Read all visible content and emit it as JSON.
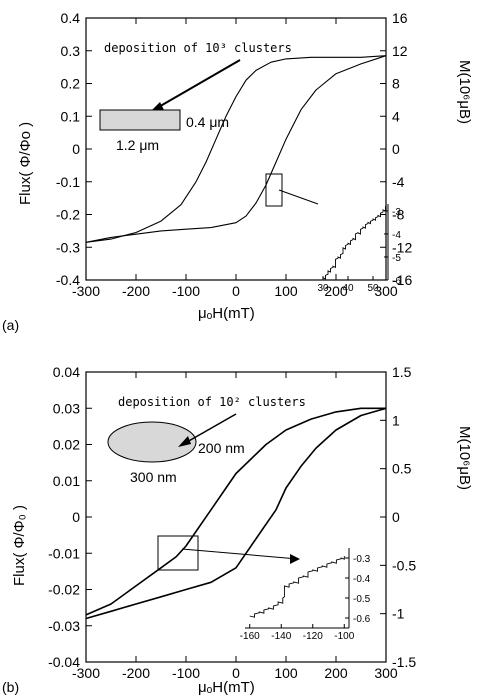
{
  "chart_data": [
    {
      "type": "line",
      "panel_label": "(a)",
      "xlabel": "μₒH(mT)",
      "ylabel_left": "Flux( Φ/Φo )",
      "ylabel_right": "M(10⁶μB)",
      "xlim": [
        -300,
        300
      ],
      "ylim_left": [
        -0.4,
        0.4
      ],
      "ylim_right": [
        -16,
        16
      ],
      "x_ticks": [
        "-300",
        "-200",
        "-100",
        "0",
        "100",
        "200",
        "300"
      ],
      "y_ticks_left": [
        "-0.4",
        "-0.3",
        "-0.2",
        "-0.1",
        "0",
        "0.1",
        "0.2",
        "0.3",
        "0.4"
      ],
      "y_ticks_right": [
        "-16",
        "-12",
        "-8",
        "-4",
        "0",
        "4",
        "8",
        "12",
        "16"
      ],
      "annotation": "deposition of 10³ clusters",
      "dim_width": "1.2 μm",
      "dim_height": "0.4 μm",
      "series": [
        {
          "x": [
            -300,
            -250,
            -200,
            -150,
            -110,
            -80,
            -60,
            -40,
            -20,
            0,
            20,
            40,
            70,
            100,
            150,
            200,
            250,
            300
          ],
          "y": [
            -0.285,
            -0.275,
            -0.255,
            -0.22,
            -0.17,
            -0.1,
            -0.04,
            0.03,
            0.1,
            0.16,
            0.21,
            0.24,
            0.265,
            0.275,
            0.28,
            0.28,
            0.28,
            0.285
          ]
        },
        {
          "x": [
            -300,
            -250,
            -200,
            -150,
            -100,
            -50,
            0,
            20,
            40,
            60,
            80,
            100,
            130,
            160,
            200,
            250,
            300
          ],
          "y": [
            -0.285,
            -0.27,
            -0.26,
            -0.25,
            -0.245,
            -0.24,
            -0.225,
            -0.205,
            -0.165,
            -0.11,
            -0.04,
            0.03,
            0.12,
            0.18,
            0.23,
            0.26,
            0.285
          ]
        }
      ],
      "inset": {
        "x_ticks": [
          "30",
          "40",
          "50"
        ],
        "y_ticks": [
          "-3",
          "-4",
          "-5",
          "-6"
        ],
        "xlim": [
          28,
          56
        ],
        "ylim": [
          -6,
          -2.7
        ],
        "x": [
          30,
          31,
          32,
          33,
          34,
          35,
          36,
          37,
          38,
          39,
          40,
          41,
          42,
          43,
          44,
          45,
          46,
          47,
          48,
          49,
          50,
          51,
          52,
          53,
          54,
          55
        ],
        "y": [
          -5.9,
          -5.8,
          -5.6,
          -5.5,
          -5.4,
          -5.1,
          -5.0,
          -4.9,
          -4.6,
          -4.5,
          -4.4,
          -4.3,
          -4.2,
          -4.0,
          -3.95,
          -3.8,
          -3.7,
          -3.6,
          -3.5,
          -3.45,
          -3.35,
          -3.3,
          -3.2,
          -3.1,
          -2.95,
          -2.8
        ]
      }
    },
    {
      "type": "line",
      "panel_label": "(b)",
      "xlabel": "μₒH(mT)",
      "ylabel_left": "Flux( Φ/Φ₀ )",
      "ylabel_right": "M(10⁶μB)",
      "xlim": [
        -300,
        300
      ],
      "ylim_left": [
        -0.04,
        0.04
      ],
      "ylim_right": [
        -1.5,
        1.5
      ],
      "x_ticks": [
        "-300",
        "-200",
        "-100",
        "0",
        "100",
        "200",
        "300"
      ],
      "y_ticks_left": [
        "-0.04",
        "-0.03",
        "-0.02",
        "-0.01",
        "0",
        "0.01",
        "0.02",
        "0.03",
        "0.04"
      ],
      "y_ticks_right": [
        "-1.5",
        "-1",
        "-0.5",
        "0",
        "0.5",
        "1",
        "1.5"
      ],
      "annotation": "deposition of 10² clusters",
      "dim_width": "300 nm",
      "dim_height": "200 nm",
      "series": [
        {
          "x": [
            -300,
            -250,
            -200,
            -150,
            -120,
            -100,
            -80,
            -50,
            -20,
            0,
            30,
            60,
            100,
            150,
            200,
            250,
            300
          ],
          "y": [
            -0.027,
            -0.024,
            -0.019,
            -0.014,
            -0.011,
            -0.008,
            -0.004,
            0.002,
            0.008,
            0.012,
            0.016,
            0.02,
            0.024,
            0.027,
            0.029,
            0.03,
            0.03
          ]
        },
        {
          "x": [
            -300,
            -250,
            -200,
            -150,
            -100,
            -50,
            0,
            20,
            50,
            80,
            100,
            130,
            160,
            200,
            250,
            300
          ],
          "y": [
            -0.028,
            -0.026,
            -0.024,
            -0.022,
            -0.02,
            -0.018,
            -0.014,
            -0.01,
            -0.004,
            0.002,
            0.008,
            0.014,
            0.019,
            0.024,
            0.028,
            0.03
          ]
        }
      ],
      "inset": {
        "x_ticks": [
          "-160",
          "-140",
          "-120",
          "-100"
        ],
        "y_ticks": [
          "-0.3",
          "-0.4",
          "-0.5",
          "-0.6"
        ],
        "xlim": [
          -163,
          -97
        ],
        "ylim": [
          -0.65,
          -0.25
        ],
        "x": [
          -160,
          -157,
          -154,
          -151,
          -148,
          -145,
          -142,
          -139,
          -138,
          -135,
          -132,
          -129,
          -126,
          -123,
          -120,
          -117,
          -114,
          -111,
          -108,
          -105,
          -102,
          -100
        ],
        "y": [
          -0.59,
          -0.58,
          -0.57,
          -0.56,
          -0.55,
          -0.54,
          -0.52,
          -0.5,
          -0.44,
          -0.43,
          -0.42,
          -0.4,
          -0.39,
          -0.37,
          -0.36,
          -0.35,
          -0.34,
          -0.33,
          -0.32,
          -0.31,
          -0.3,
          -0.29
        ]
      }
    }
  ]
}
